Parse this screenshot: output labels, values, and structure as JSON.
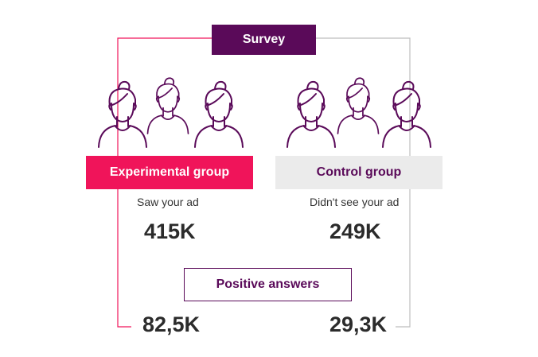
{
  "survey": {
    "label": "Survey"
  },
  "experimental": {
    "label": "Experimental group",
    "subtitle": "Saw your ad",
    "count": "415K",
    "positive": "82,5K",
    "color": "#f0145a"
  },
  "control": {
    "label": "Control group",
    "subtitle": "Didn't see your ad",
    "count": "249K",
    "positive": "29,3K",
    "color": "#ebebeb"
  },
  "positive_answers": {
    "label": "Positive answers"
  },
  "colors": {
    "primary": "#5a0a59",
    "accent": "#f0145a",
    "line_control": "#bdbdbd",
    "text": "#2b2b2b"
  },
  "icons": [
    "person-icon"
  ]
}
